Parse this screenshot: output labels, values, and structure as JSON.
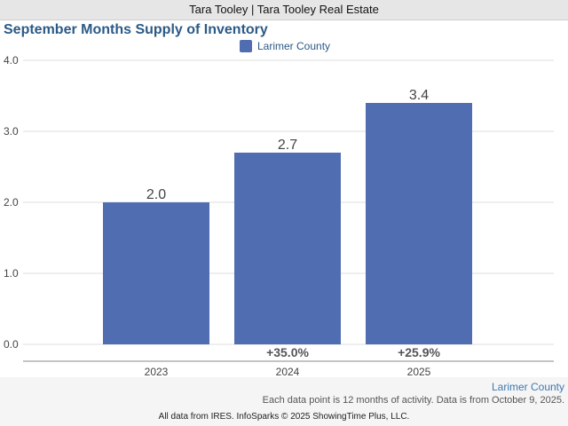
{
  "header": {
    "title": "Tara Tooley | Tara Tooley Real Estate"
  },
  "chart_data": {
    "type": "bar",
    "title": "September Months Supply of Inventory",
    "categories": [
      "2023",
      "2024",
      "2025"
    ],
    "series": [
      {
        "name": "Larimer County",
        "values": [
          2.0,
          2.7,
          3.4
        ]
      }
    ],
    "data_labels": [
      "2.0",
      "2.7",
      "3.4"
    ],
    "change_labels": [
      "",
      "+35.0%",
      "+25.9%"
    ],
    "y_ticks": [
      "0.0",
      "1.0",
      "2.0",
      "3.0",
      "4.0"
    ],
    "ylim": [
      0,
      4
    ],
    "grid": true,
    "legend_position": "top-center",
    "colors": {
      "bar": "#4f6db0"
    }
  },
  "footer": {
    "area_label": "Larimer County",
    "note": "Each data point is 12 months of activity. Data is from October 9, 2025.",
    "credits": "All data from IRES. InfoSparks © 2025 ShowingTime Plus, LLC."
  }
}
